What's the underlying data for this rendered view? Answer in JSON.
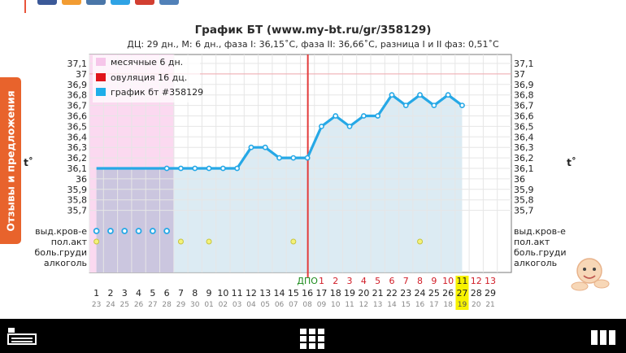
{
  "feedback_tab": {
    "label": "Отзывы и предложения"
  },
  "chart_data": {
    "type": "line",
    "title": "График БТ (www.my-bt.ru/gr/358129)",
    "subtitle": "ДЦ: 29 дн., М: 6 дн., фаза I: 36,15˚С, фаза II: 36,66˚С, разница I и II фаз: 0,51˚С",
    "y_axis_label": "t˚",
    "ylim": [
      35.6,
      37.2
    ],
    "y_ticks": [
      "37,1",
      "37",
      "36,9",
      "36,8",
      "36,7",
      "36,6",
      "36,5",
      "36,4",
      "36,3",
      "36,2",
      "36,1",
      "36",
      "35,9",
      "35,8",
      "35,7"
    ],
    "y_tick_values": [
      37.1,
      37.0,
      36.9,
      36.8,
      36.7,
      36.6,
      36.5,
      36.4,
      36.3,
      36.2,
      36.1,
      36.0,
      35.9,
      35.8,
      35.7
    ],
    "reference_line": 37.0,
    "ovulation_day": 16,
    "ovulation_label": "ДПО",
    "menses_days": 6,
    "x": [
      1,
      2,
      3,
      4,
      5,
      6,
      7,
      8,
      9,
      10,
      11,
      12,
      13,
      14,
      15,
      16,
      17,
      18,
      19,
      20,
      21,
      22,
      23,
      24,
      25,
      26,
      27,
      28,
      29
    ],
    "date_labels": [
      "23",
      "24",
      "25",
      "26",
      "27",
      "28",
      "29",
      "30",
      "01",
      "02",
      "03",
      "04",
      "05",
      "06",
      "07",
      "08",
      "09",
      "10",
      "11",
      "12",
      "13",
      "14",
      "15",
      "16",
      "17",
      "18",
      "19",
      "20",
      "21"
    ],
    "dpo_labels": [
      "1",
      "2",
      "3",
      "4",
      "5",
      "6",
      "7",
      "8",
      "9",
      "10",
      "11",
      "12",
      "13"
    ],
    "highlighted_day": 27,
    "series": [
      {
        "name": "график бт #358129",
        "values": [
          null,
          null,
          null,
          null,
          null,
          36.1,
          36.1,
          36.1,
          36.1,
          36.1,
          36.1,
          36.3,
          36.3,
          36.2,
          36.2,
          36.2,
          36.5,
          36.6,
          36.5,
          36.6,
          36.6,
          36.8,
          36.7,
          36.8,
          36.7,
          36.8,
          36.7,
          null,
          null
        ]
      }
    ],
    "row_labels": [
      "выд.кров-е",
      "пол.акт",
      "боль.груди",
      "алкоголь"
    ],
    "bleeding_days": [
      1,
      2,
      3,
      4,
      5,
      6
    ],
    "intercourse_days": [
      1,
      7,
      9,
      15,
      24
    ],
    "legend": [
      {
        "label": "месячные 6 дн.",
        "color": "#f6c6ea"
      },
      {
        "label": "овуляция 16 дц.",
        "color": "#e0151b"
      },
      {
        "label": "график бт #358129",
        "color": "#1eaee9"
      }
    ],
    "colors": {
      "line": "#26a8e6",
      "ovulation": "#e33b3b",
      "menses": "#fbd9f0",
      "fill": "#d6e8f1",
      "dpo": "#d11d27",
      "highlight": "#f7f200",
      "dpo_caption": "#1a8a1a"
    }
  }
}
